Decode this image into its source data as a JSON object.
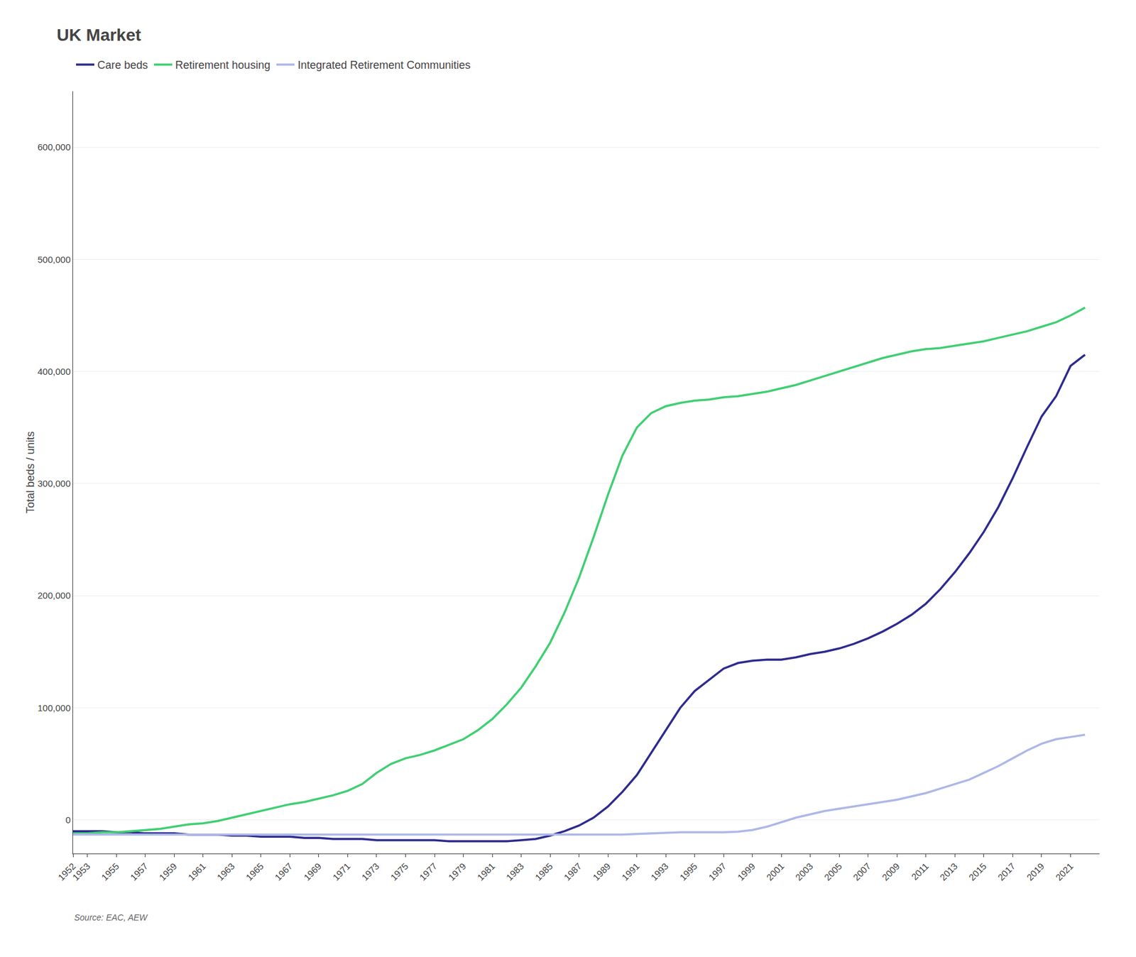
{
  "chart_data": {
    "type": "line",
    "title": "UK Market",
    "ylabel": "Total beds / units",
    "annotations": [
      "Source: EAC, AEW"
    ],
    "x": [
      1952,
      1953,
      1954,
      1955,
      1956,
      1957,
      1958,
      1959,
      1960,
      1961,
      1962,
      1963,
      1964,
      1965,
      1966,
      1967,
      1968,
      1969,
      1970,
      1971,
      1972,
      1973,
      1974,
      1975,
      1976,
      1977,
      1978,
      1979,
      1980,
      1981,
      1982,
      1983,
      1984,
      1985,
      1986,
      1987,
      1988,
      1989,
      1990,
      1991,
      1992,
      1993,
      1994,
      1995,
      1996,
      1997,
      1998,
      1999,
      2000,
      2001,
      2002,
      2003,
      2004,
      2005,
      2006,
      2007,
      2008,
      2009,
      2010,
      2011,
      2012,
      2013,
      2014,
      2015,
      2016,
      2017,
      2018,
      2019,
      2020,
      2021,
      2022
    ],
    "series": [
      {
        "name": "Care beds",
        "color": "#2d2b8f",
        "values": [
          -10000,
          -10000,
          -10000,
          -11000,
          -11000,
          -12000,
          -12000,
          -12000,
          -13000,
          -13000,
          -13000,
          -14000,
          -14000,
          -15000,
          -15000,
          -15000,
          -16000,
          -16000,
          -17000,
          -17000,
          -17000,
          -18000,
          -18000,
          -18000,
          -18000,
          -18000,
          -19000,
          -19000,
          -19000,
          -19000,
          -19000,
          -18000,
          -17000,
          -14000,
          -10000,
          -5000,
          2000,
          12000,
          25000,
          40000,
          60000,
          80000,
          100000,
          115000,
          125000,
          135000,
          140000,
          142000,
          143000,
          143000,
          145000,
          148000,
          150000,
          153000,
          157000,
          162000,
          168000,
          175000,
          183000,
          193000,
          206000,
          221000,
          238000,
          257000,
          279000,
          305000,
          333000,
          360000,
          378000,
          405000,
          415000
        ]
      },
      {
        "name": "Retirement housing",
        "color": "#3fcf72",
        "values": [
          -12000,
          -12000,
          -11000,
          -11000,
          -10000,
          -9000,
          -8000,
          -6000,
          -4000,
          -3000,
          -1000,
          2000,
          5000,
          8000,
          11000,
          14000,
          16000,
          19000,
          22000,
          26000,
          32000,
          42000,
          50000,
          55000,
          58000,
          62000,
          67000,
          72000,
          80000,
          90000,
          103000,
          118000,
          137000,
          158000,
          185000,
          216000,
          252000,
          290000,
          325000,
          350000,
          363000,
          369000,
          372000,
          374000,
          375000,
          377000,
          378000,
          380000,
          382000,
          385000,
          388000,
          392000,
          396000,
          400000,
          404000,
          408000,
          412000,
          415000,
          418000,
          420000,
          421000,
          423000,
          425000,
          427000,
          430000,
          433000,
          436000,
          440000,
          444000,
          450000,
          457000
        ]
      },
      {
        "name": "Integrated Retirement Communities",
        "color": "#adb8e8",
        "values": [
          -13000,
          -13000,
          -13000,
          -13000,
          -13000,
          -13000,
          -13000,
          -13000,
          -13000,
          -13000,
          -13000,
          -13000,
          -13000,
          -13000,
          -13000,
          -13000,
          -13000,
          -13000,
          -13000,
          -13000,
          -13000,
          -13000,
          -13000,
          -13000,
          -13000,
          -13000,
          -13000,
          -13000,
          -13000,
          -13000,
          -13000,
          -13000,
          -13000,
          -13000,
          -13000,
          -13000,
          -13000,
          -13000,
          -13000,
          -12500,
          -12000,
          -11500,
          -11000,
          -11000,
          -11000,
          -11000,
          -10500,
          -9000,
          -6000,
          -2000,
          2000,
          5000,
          8000,
          10000,
          12000,
          14000,
          16000,
          18000,
          21000,
          24000,
          28000,
          32000,
          36000,
          42000,
          48000,
          55000,
          62000,
          68000,
          72000,
          74000,
          76000
        ]
      }
    ],
    "xlim": [
      1952,
      2023
    ],
    "xticks": [
      1952,
      1953,
      1955,
      1957,
      1959,
      1961,
      1963,
      1965,
      1967,
      1969,
      1971,
      1973,
      1975,
      1977,
      1979,
      1981,
      1983,
      1985,
      1987,
      1989,
      1991,
      1993,
      1995,
      1997,
      1999,
      2001,
      2003,
      2005,
      2007,
      2009,
      2011,
      2013,
      2015,
      2017,
      2019,
      2021
    ],
    "ylim": [
      -30000,
      650000
    ],
    "yticks": [
      0,
      {
        "value": 100000,
        "label": "100,000"
      },
      {
        "value": 200000,
        "label": "200,000"
      },
      {
        "value": 300000,
        "label": "300,000"
      },
      {
        "value": 400000,
        "label": "400,000"
      },
      {
        "value": 500000,
        "label": "500,000"
      },
      {
        "value": 600000,
        "label": "600,000"
      }
    ],
    "grid": "y",
    "legend": "upper left"
  }
}
